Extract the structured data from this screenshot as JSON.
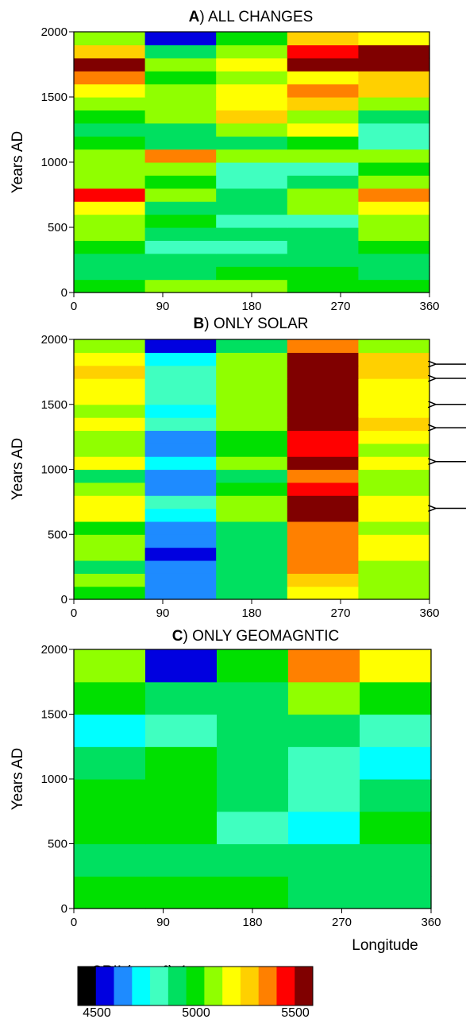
{
  "colorbar": {
    "label": "CRII (g cm²)⁻¹",
    "ticks": [
      "4500",
      "5000",
      "5500"
    ],
    "colors": [
      "#000000",
      "#0000e0",
      "#1e8bff",
      "#00ffff",
      "#40ffc0",
      "#00e060",
      "#00e000",
      "#90ff00",
      "#ffff00",
      "#ffd000",
      "#ff8000",
      "#ff0000",
      "#800000"
    ]
  },
  "chart_data": [
    {
      "type": "heatmap",
      "panel_letter": "A",
      "title": "ALL CHANGES",
      "ylabel": "Years AD",
      "xlabel": "",
      "xlim": [
        0,
        360
      ],
      "ylim": [
        0,
        2000
      ],
      "xticks": [
        0,
        90,
        180,
        270,
        360
      ],
      "yticks": [
        0,
        500,
        1000,
        1500,
        2000
      ],
      "color_levels": [
        4500,
        5500
      ],
      "bands": [
        {
          "y0": 0,
          "y1": 100,
          "values": [
            5000,
            5050,
            5050,
            5000,
            5000
          ]
        },
        {
          "y0": 100,
          "y1": 200,
          "values": [
            4950,
            4950,
            5000,
            5000,
            4950
          ]
        },
        {
          "y0": 200,
          "y1": 300,
          "values": [
            4950,
            4950,
            4950,
            4950,
            4950
          ]
        },
        {
          "y0": 300,
          "y1": 400,
          "values": [
            5000,
            4850,
            4850,
            4900,
            5000
          ]
        },
        {
          "y0": 400,
          "y1": 500,
          "values": [
            5050,
            4900,
            4900,
            4950,
            5050
          ]
        },
        {
          "y0": 500,
          "y1": 600,
          "values": [
            5050,
            5000,
            4800,
            4850,
            5050
          ]
        },
        {
          "y0": 600,
          "y1": 700,
          "values": [
            5200,
            4950,
            4900,
            5050,
            5200
          ]
        },
        {
          "y0": 700,
          "y1": 800,
          "values": [
            5450,
            5100,
            4900,
            5050,
            5300
          ]
        },
        {
          "y0": 800,
          "y1": 900,
          "values": [
            5100,
            5000,
            4850,
            4900,
            5100
          ]
        },
        {
          "y0": 900,
          "y1": 1000,
          "values": [
            5050,
            5050,
            4800,
            4850,
            5000
          ]
        },
        {
          "y0": 1000,
          "y1": 1100,
          "values": [
            5100,
            5300,
            5100,
            5050,
            5100
          ]
        },
        {
          "y0": 1100,
          "y1": 1200,
          "values": [
            5000,
            4950,
            4950,
            5000,
            4800
          ]
        },
        {
          "y0": 1200,
          "y1": 1300,
          "values": [
            4900,
            4950,
            5100,
            5150,
            4850
          ]
        },
        {
          "y0": 1300,
          "y1": 1400,
          "values": [
            5000,
            5100,
            5250,
            5100,
            4900
          ]
        },
        {
          "y0": 1400,
          "y1": 1500,
          "values": [
            5100,
            5050,
            5150,
            5250,
            5100
          ]
        },
        {
          "y0": 1500,
          "y1": 1600,
          "values": [
            5150,
            5100,
            5150,
            5350,
            5250
          ]
        },
        {
          "y0": 1600,
          "y1": 1700,
          "values": [
            5300,
            5000,
            5050,
            5200,
            5250
          ]
        },
        {
          "y0": 1700,
          "y1": 1800,
          "values": [
            5550,
            5050,
            5150,
            5550,
            5550
          ]
        },
        {
          "y0": 1800,
          "y1": 1900,
          "values": [
            5250,
            4900,
            5100,
            5450,
            5500
          ]
        },
        {
          "y0": 1900,
          "y1": 2000,
          "values": [
            5050,
            4600,
            5000,
            5250,
            5150
          ]
        }
      ]
    },
    {
      "type": "heatmap",
      "panel_letter": "B",
      "title": "ONLY SOLAR",
      "ylabel": "Years AD",
      "xlabel": "",
      "xlim": [
        0,
        360
      ],
      "ylim": [
        0,
        2000
      ],
      "xticks": [
        0,
        90,
        180,
        270,
        360
      ],
      "yticks": [
        0,
        500,
        1000,
        1500,
        2000
      ],
      "color_levels": [
        4500,
        5500
      ],
      "arrow_years": [
        1810,
        1700,
        1500,
        1320,
        1060,
        700
      ],
      "bands": [
        {
          "y0": 0,
          "y1": 100,
          "values": [
            5000,
            4700,
            4900,
            5150,
            5050
          ]
        },
        {
          "y0": 100,
          "y1": 200,
          "values": [
            5050,
            4650,
            4950,
            5250,
            5100
          ]
        },
        {
          "y0": 200,
          "y1": 300,
          "values": [
            4950,
            4650,
            4950,
            5300,
            5050
          ]
        },
        {
          "y0": 300,
          "y1": 400,
          "values": [
            5100,
            4600,
            4950,
            5350,
            5150
          ]
        },
        {
          "y0": 400,
          "y1": 500,
          "values": [
            5100,
            4700,
            4950,
            5300,
            5150
          ]
        },
        {
          "y0": 500,
          "y1": 600,
          "values": [
            5000,
            4650,
            4950,
            5350,
            5100
          ]
        },
        {
          "y0": 600,
          "y1": 700,
          "values": [
            5150,
            4750,
            5050,
            5500,
            5200
          ]
        },
        {
          "y0": 700,
          "y1": 800,
          "values": [
            5200,
            4800,
            5050,
            5550,
            5200
          ]
        },
        {
          "y0": 800,
          "y1": 900,
          "values": [
            5050,
            4700,
            5000,
            5400,
            5100
          ]
        },
        {
          "y0": 900,
          "y1": 1000,
          "values": [
            4950,
            4650,
            4950,
            5350,
            5050
          ]
        },
        {
          "y0": 1000,
          "y1": 1100,
          "values": [
            5150,
            4750,
            5050,
            5550,
            5200
          ]
        },
        {
          "y0": 1100,
          "y1": 1200,
          "values": [
            5050,
            4700,
            5000,
            5400,
            5100
          ]
        },
        {
          "y0": 1200,
          "y1": 1300,
          "values": [
            5100,
            4700,
            5000,
            5450,
            5150
          ]
        },
        {
          "y0": 1300,
          "y1": 1400,
          "values": [
            5200,
            4800,
            5050,
            5550,
            5250
          ]
        },
        {
          "y0": 1400,
          "y1": 1500,
          "values": [
            5100,
            4750,
            5050,
            5550,
            5200
          ]
        },
        {
          "y0": 1500,
          "y1": 1600,
          "values": [
            5150,
            4800,
            5050,
            5550,
            5200
          ]
        },
        {
          "y0": 1600,
          "y1": 1700,
          "values": [
            5150,
            4800,
            5050,
            5500,
            5200
          ]
        },
        {
          "y0": 1700,
          "y1": 1800,
          "values": [
            5250,
            4850,
            5050,
            5550,
            5250
          ]
        },
        {
          "y0": 1800,
          "y1": 1900,
          "values": [
            5200,
            4750,
            5050,
            5550,
            5250
          ]
        },
        {
          "y0": 1900,
          "y1": 2000,
          "values": [
            5050,
            4550,
            4900,
            5300,
            5100
          ]
        }
      ]
    },
    {
      "type": "heatmap",
      "panel_letter": "C",
      "title": "ONLY GEOMAGNTIC",
      "ylabel": "Years AD",
      "xlabel": "Longitude",
      "xlim": [
        0,
        360
      ],
      "ylim": [
        0,
        2000
      ],
      "xticks": [
        0,
        90,
        180,
        270,
        360
      ],
      "yticks": [
        0,
        500,
        1000,
        1500,
        2000
      ],
      "color_levels": [
        4500,
        5500
      ],
      "bands": [
        {
          "y0": 0,
          "y1": 250,
          "values": [
            5000,
            5000,
            5000,
            4950,
            4950
          ]
        },
        {
          "y0": 250,
          "y1": 500,
          "values": [
            4950,
            4950,
            4900,
            4900,
            4950
          ]
        },
        {
          "y0": 500,
          "y1": 750,
          "values": [
            5000,
            5000,
            4850,
            4750,
            5000
          ]
        },
        {
          "y0": 750,
          "y1": 1000,
          "values": [
            5000,
            5000,
            4900,
            4800,
            4950
          ]
        },
        {
          "y0": 1000,
          "y1": 1250,
          "values": [
            4950,
            5000,
            4950,
            4850,
            4750
          ]
        },
        {
          "y0": 1250,
          "y1": 1500,
          "values": [
            4750,
            4850,
            4950,
            4950,
            4850
          ]
        },
        {
          "y0": 1500,
          "y1": 1750,
          "values": [
            5000,
            4900,
            4950,
            5050,
            5000
          ]
        },
        {
          "y0": 1750,
          "y1": 2000,
          "values": [
            5050,
            4550,
            5000,
            5300,
            5150
          ]
        }
      ]
    }
  ]
}
